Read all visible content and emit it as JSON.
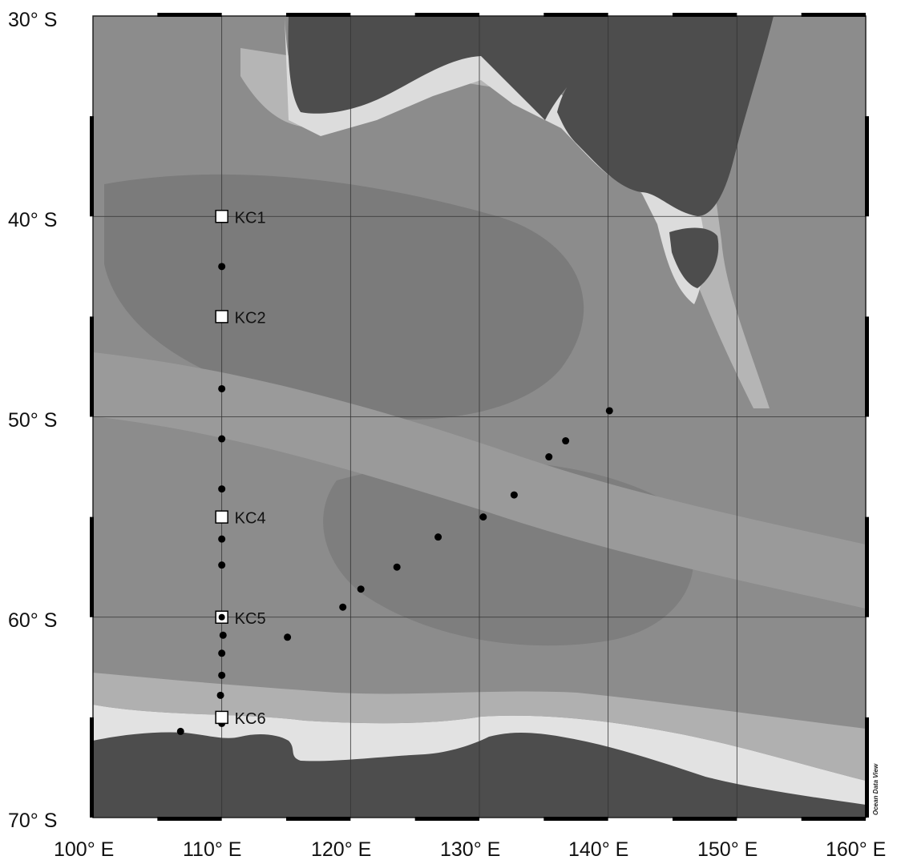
{
  "map": {
    "lon_labels": [
      "100° E",
      "110° E",
      "120° E",
      "130° E",
      "140° E",
      "150° E",
      "160° E"
    ],
    "lat_labels": [
      "30° S",
      "40° S",
      "50° S",
      "60° S",
      "70° S"
    ],
    "lon_range": [
      100,
      160
    ],
    "lat_range": [
      -30,
      -70
    ],
    "credit": "Ocean Data View",
    "colors": {
      "land": "#4d4d4d",
      "ocean": "#8c8c8c",
      "deep_ocean": "#7a7a7a",
      "shelf": "#e6e6e6",
      "grid": "#333333"
    }
  },
  "stations": [
    {
      "name": "KC1",
      "lon": 110,
      "lat": -40
    },
    {
      "name": "KC2",
      "lon": 110,
      "lat": -45
    },
    {
      "name": "KC4",
      "lon": 110,
      "lat": -55
    },
    {
      "name": "KC5",
      "lon": 110,
      "lat": -60
    },
    {
      "name": "KC6",
      "lon": 110,
      "lat": -65
    }
  ],
  "points": [
    {
      "lon": 110.0,
      "lat": -42.5
    },
    {
      "lon": 110.0,
      "lat": -48.6
    },
    {
      "lon": 110.0,
      "lat": -51.1
    },
    {
      "lon": 110.0,
      "lat": -53.6
    },
    {
      "lon": 110.0,
      "lat": -56.1
    },
    {
      "lon": 110.0,
      "lat": -57.4
    },
    {
      "lon": 110.0,
      "lat": -60.0
    },
    {
      "lon": 110.1,
      "lat": -60.9
    },
    {
      "lon": 110.0,
      "lat": -61.8
    },
    {
      "lon": 110.0,
      "lat": -62.9
    },
    {
      "lon": 109.9,
      "lat": -63.9
    },
    {
      "lon": 110.0,
      "lat": -65.3
    },
    {
      "lon": 106.8,
      "lat": -65.7
    },
    {
      "lon": 115.1,
      "lat": -61.0
    },
    {
      "lon": 119.4,
      "lat": -59.5
    },
    {
      "lon": 120.8,
      "lat": -58.6
    },
    {
      "lon": 123.6,
      "lat": -57.5
    },
    {
      "lon": 126.8,
      "lat": -56.0
    },
    {
      "lon": 130.3,
      "lat": -55.0
    },
    {
      "lon": 132.7,
      "lat": -53.9
    },
    {
      "lon": 135.4,
      "lat": -52.0
    },
    {
      "lon": 136.7,
      "lat": -51.2
    },
    {
      "lon": 140.1,
      "lat": -49.7
    }
  ]
}
